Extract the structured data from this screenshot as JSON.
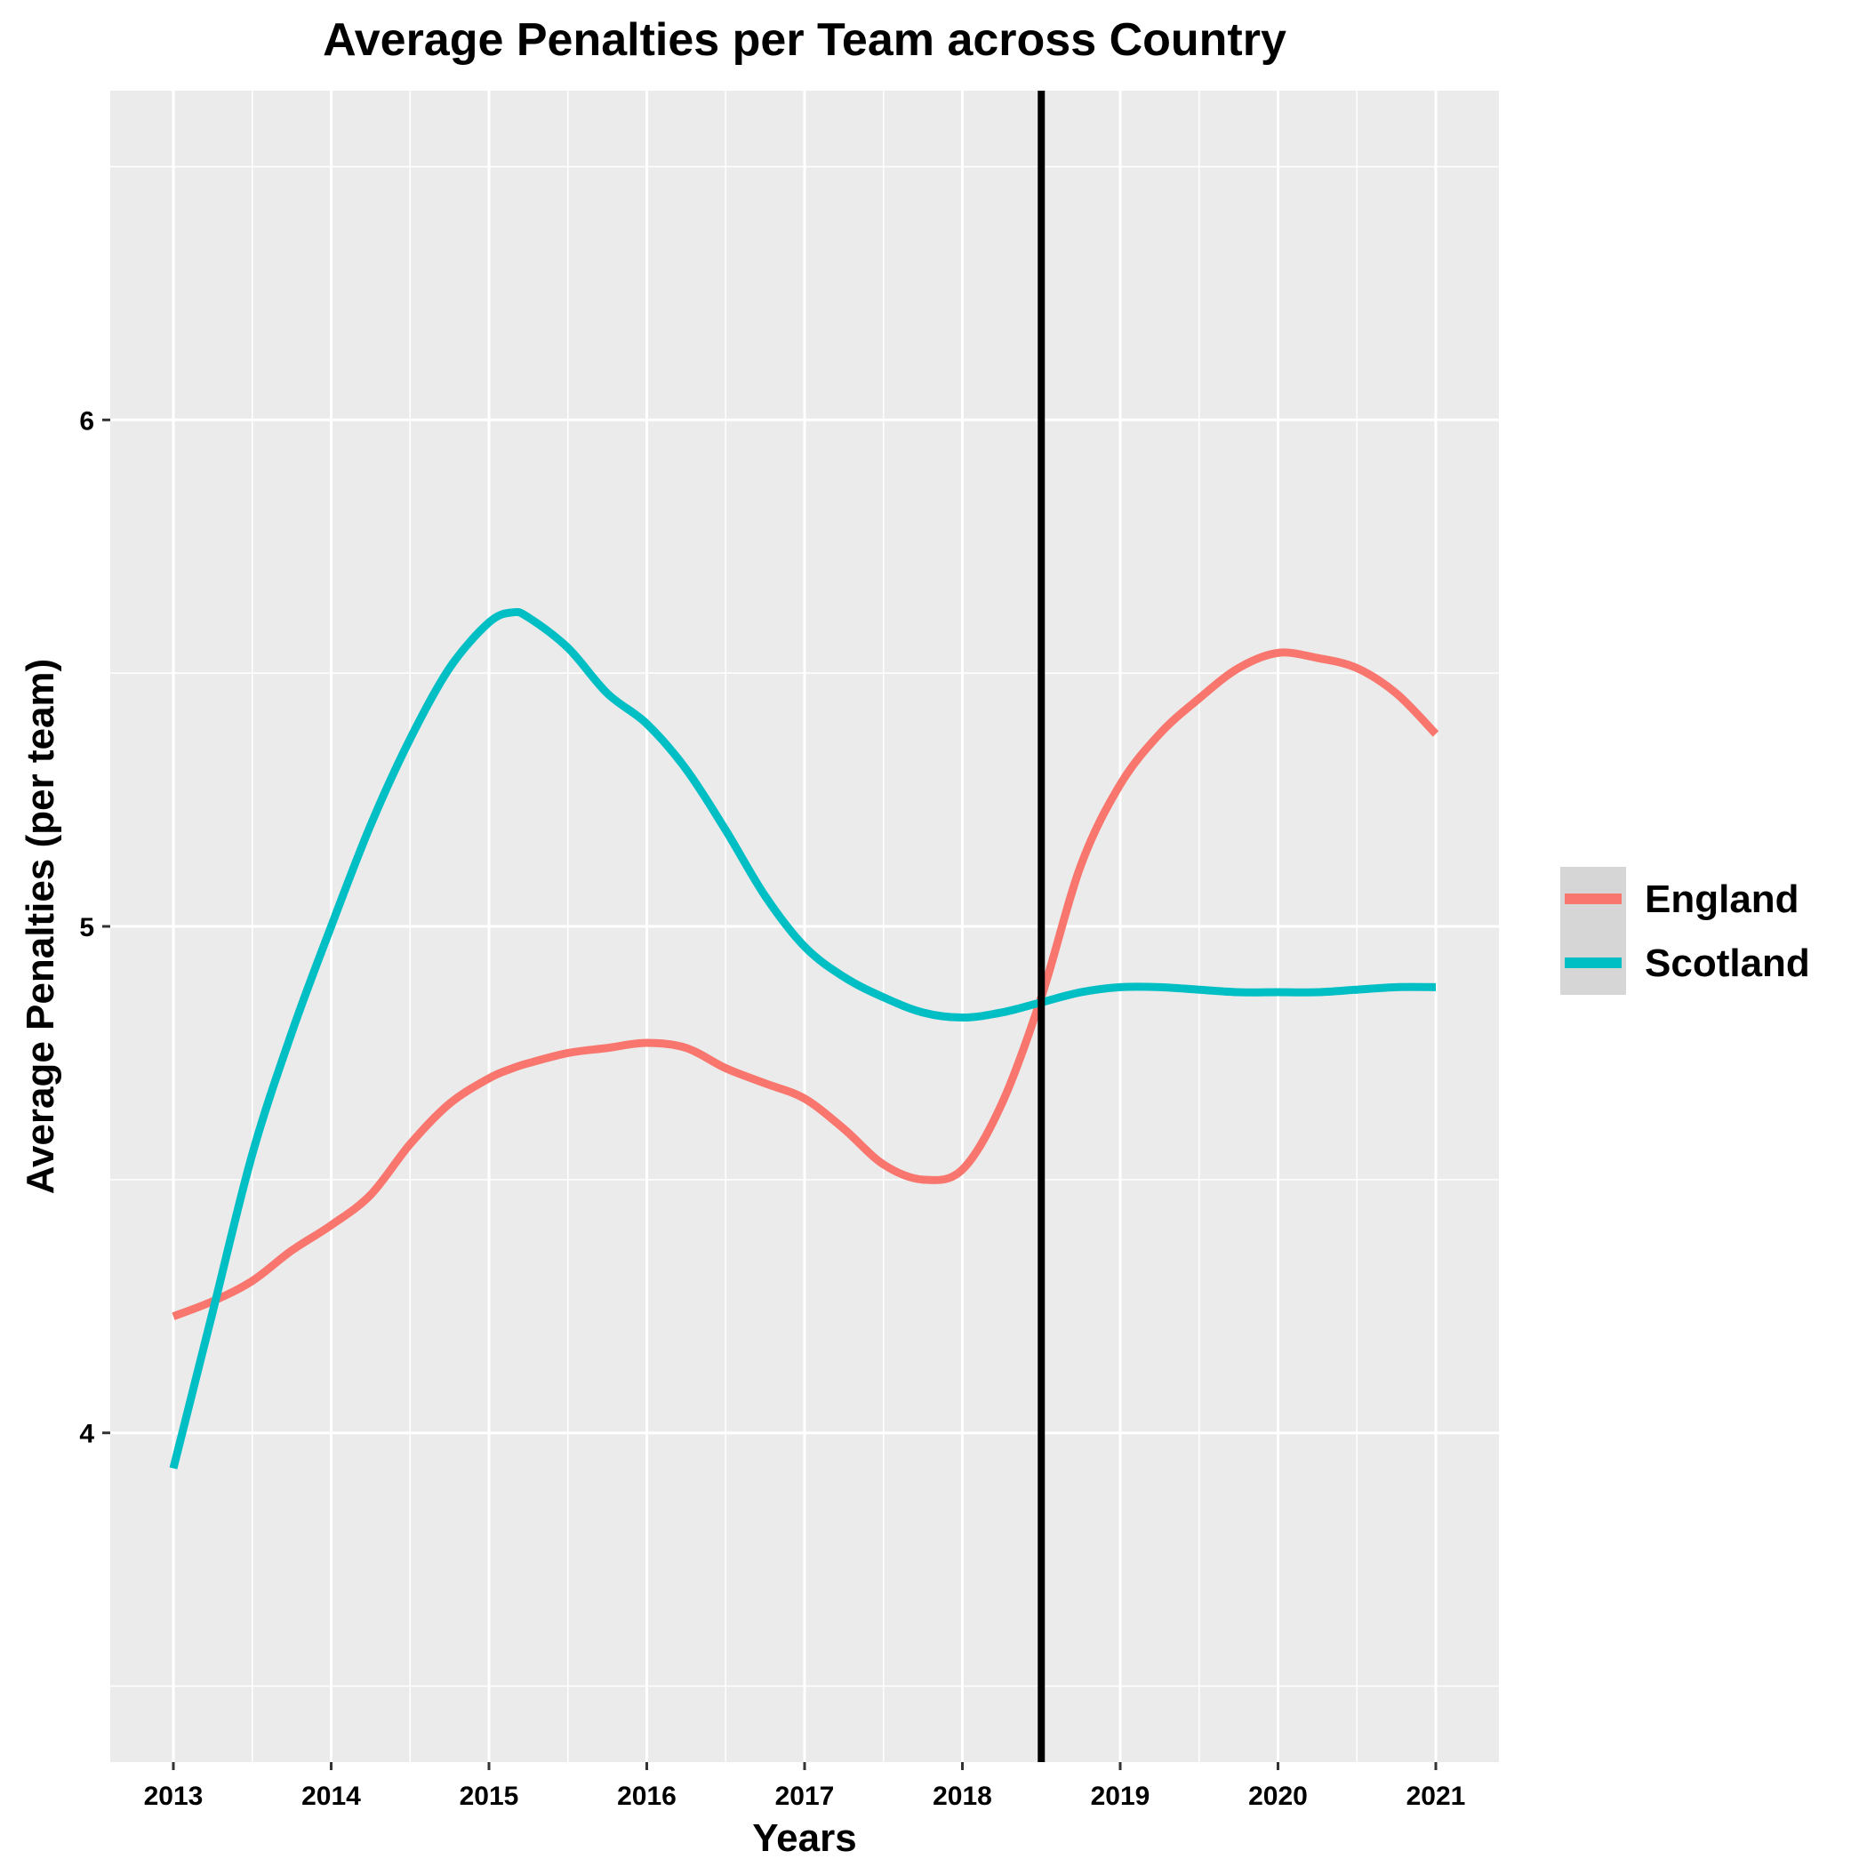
{
  "chart_data": {
    "type": "line",
    "title": "Average Penalties per Team across Country",
    "xlabel": "Years",
    "ylabel": "Average Penalties (per team)",
    "x": [
      2013,
      2013.25,
      2013.5,
      2013.75,
      2014,
      2014.25,
      2014.5,
      2014.75,
      2015,
      2015.15,
      2015.25,
      2015.5,
      2015.75,
      2016,
      2016.25,
      2016.5,
      2016.75,
      2017,
      2017.25,
      2017.5,
      2017.75,
      2018,
      2018.25,
      2018.5,
      2018.75,
      2019,
      2019.25,
      2019.5,
      2019.75,
      2020,
      2020.25,
      2020.5,
      2020.75,
      2021
    ],
    "xticks": [
      2013,
      2014,
      2015,
      2016,
      2017,
      2018,
      2019,
      2020,
      2021
    ],
    "yticks": [
      4,
      5,
      6
    ],
    "xlim": [
      2012.6,
      2021.4
    ],
    "ylim": [
      3.35,
      6.65
    ],
    "vline": 2018.5,
    "series": [
      {
        "name": "England",
        "color": "#F8766D",
        "values": [
          4.23,
          4.26,
          4.3,
          4.36,
          4.41,
          4.47,
          4.57,
          4.65,
          4.7,
          4.72,
          4.73,
          4.75,
          4.76,
          4.77,
          4.76,
          4.72,
          4.69,
          4.66,
          4.6,
          4.53,
          4.5,
          4.52,
          4.65,
          4.86,
          5.12,
          5.28,
          5.38,
          5.45,
          5.51,
          5.54,
          5.53,
          5.51,
          5.46,
          5.38
        ]
      },
      {
        "name": "Scotland",
        "color": "#00BFC4",
        "values": [
          3.93,
          4.24,
          4.55,
          4.79,
          5.0,
          5.2,
          5.37,
          5.51,
          5.6,
          5.62,
          5.61,
          5.55,
          5.46,
          5.4,
          5.31,
          5.19,
          5.06,
          4.96,
          4.9,
          4.86,
          4.83,
          4.82,
          4.83,
          4.85,
          4.87,
          4.88,
          4.88,
          4.875,
          4.87,
          4.87,
          4.87,
          4.875,
          4.88,
          4.88
        ]
      }
    ],
    "legend_position": "right",
    "grid": true,
    "background": "#EBEBEB"
  }
}
